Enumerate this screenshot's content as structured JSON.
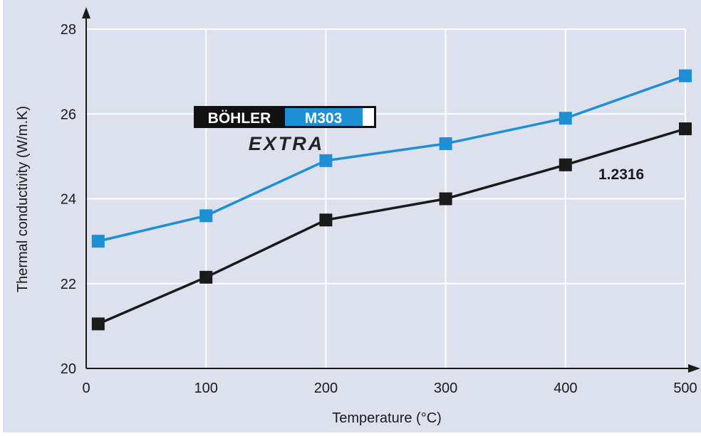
{
  "chart_data": {
    "type": "line",
    "xlabel": "Temperature (°C)",
    "ylabel": "Thermal conductivity (W/m.K)",
    "xlim": [
      0,
      500
    ],
    "ylim": [
      20,
      28
    ],
    "xticks": [
      0,
      100,
      200,
      300,
      400,
      500
    ],
    "yticks": [
      20,
      22,
      24,
      26,
      28
    ],
    "grid": true,
    "series": [
      {
        "name": "BÖHLER M303 EXTRA",
        "color": "#1f8fd3",
        "x": [
          10,
          100,
          200,
          300,
          400,
          500
        ],
        "values": [
          23.0,
          23.6,
          24.9,
          25.3,
          25.9,
          26.9
        ]
      },
      {
        "name": "1.2316",
        "color": "#1a1a1a",
        "x": [
          10,
          100,
          200,
          300,
          400,
          500
        ],
        "values": [
          21.05,
          22.15,
          23.5,
          24.0,
          24.8,
          25.65
        ]
      }
    ],
    "logo": {
      "line1_left": "BÖHLER",
      "line1_right": "M303",
      "line2": "EXTRA"
    },
    "series_label": "1.2316",
    "colors": {
      "background": "#dde1ee",
      "grid": "#ffffff",
      "axis": "#1a1a1a"
    }
  }
}
